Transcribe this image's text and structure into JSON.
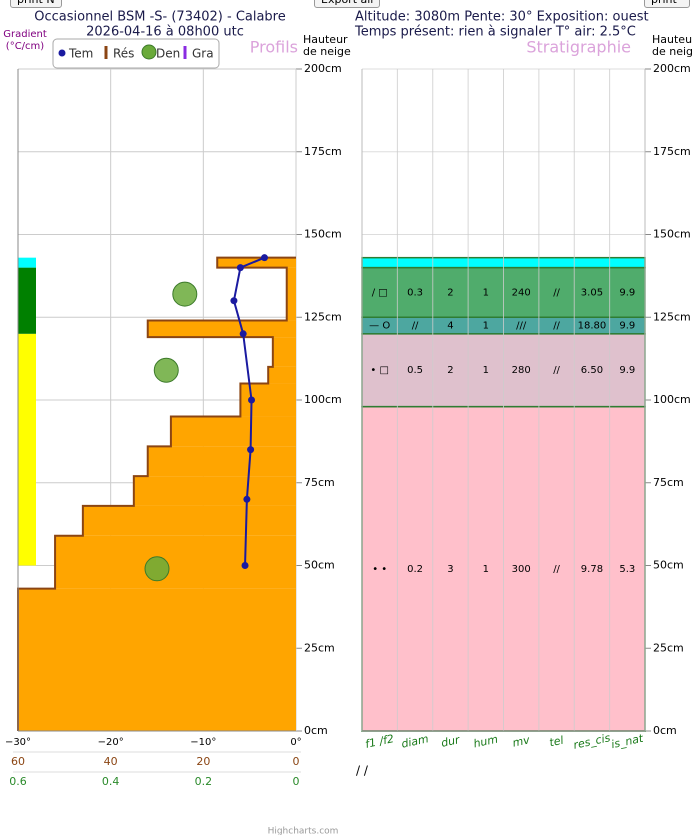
{
  "buttons": [
    "print N",
    "Export all",
    "print C"
  ],
  "header": {
    "title": "Occasionnel BSM -S- (73402) - Calabre",
    "date": "2026-04-16 à 08h00 utc",
    "line1": "Altitude: 3080m Pente: 30° Exposition: ouest",
    "line2": "Temps présent: rien à signaler T° air: 2.5°C"
  },
  "credit": "Highcharts.com",
  "chart_data": [
    {
      "type": "profile",
      "title": "Profils",
      "y_label": [
        "Hauteur",
        "de neige"
      ],
      "gradient_label": [
        "Gradient",
        "(°C/cm)"
      ],
      "ylim": [
        0,
        200
      ],
      "yticks": [
        {
          "value": 0,
          "label": "0cm"
        },
        {
          "value": 25,
          "label": "25cm"
        },
        {
          "value": 50,
          "label": "50cm"
        },
        {
          "value": 75,
          "label": "75cm"
        },
        {
          "value": 100,
          "label": "100cm"
        },
        {
          "value": 125,
          "label": "125cm"
        },
        {
          "value": 150,
          "label": "150cm"
        },
        {
          "value": 175,
          "label": "175cm"
        },
        {
          "value": 200,
          "label": "200cm"
        }
      ],
      "xlim": [
        -30,
        0
      ],
      "xticks": [
        {
          "value": -30,
          "label": "−30°"
        },
        {
          "value": -20,
          "label": "−20°"
        },
        {
          "value": -10,
          "label": "−10°"
        },
        {
          "value": 0,
          "label": "0°"
        }
      ],
      "res_xlim": [
        60,
        0
      ],
      "res_xticks": [
        60,
        40,
        20,
        0
      ],
      "den_xlim": [
        0.6,
        0
      ],
      "den_xticks": [
        0.6,
        0.4,
        0.2,
        0
      ],
      "grid": true,
      "series": [
        {
          "name": "Tem",
          "color": "#1a1aa0",
          "heights": [
            143,
            140,
            130,
            120,
            100,
            85,
            70,
            50
          ],
          "values": [
            -3.4,
            -6,
            -6.7,
            -5.7,
            -4.8,
            -4.9,
            -5.3,
            -5.5
          ]
        },
        {
          "name": "Rés",
          "color": "#8b4513",
          "fill": "#ffa500",
          "bottoms": [
            0,
            43,
            59,
            68,
            77,
            86,
            95,
            105,
            110,
            119,
            124,
            140
          ],
          "tops": [
            43,
            59,
            68,
            77,
            86,
            95,
            105,
            110,
            119,
            124,
            140,
            143
          ],
          "values": [
            60,
            52,
            46,
            35,
            32,
            27,
            12,
            6,
            5,
            32,
            2,
            17
          ]
        },
        {
          "name": "Den",
          "color": "#6aaa3a",
          "heights": [
            132,
            109,
            49
          ],
          "values": [
            0.24,
            0.28,
            0.3
          ]
        },
        {
          "name": "Gra",
          "color": "#8a2be2",
          "bottoms": [
            50,
            120,
            140
          ],
          "tops": [
            120,
            140,
            143
          ],
          "colors": [
            "#ffff00",
            "#008000",
            "#00ffff"
          ]
        }
      ]
    },
    {
      "type": "stratigraphy",
      "title": "Stratigraphie",
      "y_label": [
        "Hauteur",
        "de neige"
      ],
      "ylim": [
        0,
        200
      ],
      "yticks": [
        {
          "value": 0,
          "label": "0cm"
        },
        {
          "value": 25,
          "label": "25cm"
        },
        {
          "value": 50,
          "label": "50cm"
        },
        {
          "value": 75,
          "label": "75cm"
        },
        {
          "value": 100,
          "label": "100cm"
        },
        {
          "value": 125,
          "label": "125cm"
        },
        {
          "value": 150,
          "label": "150cm"
        },
        {
          "value": 175,
          "label": "175cm"
        },
        {
          "value": 200,
          "label": "200cm"
        }
      ],
      "columns": [
        "f1 /f2",
        "diam",
        "dur",
        "hum",
        "mv",
        "tel",
        "res_cis",
        "is_nat"
      ],
      "layers": [
        {
          "bottom": 0,
          "top": 98,
          "color": "#ffc0cb",
          "cells": [
            "• •",
            "0.2",
            "3",
            "1",
            "300",
            "//",
            "9.78",
            "5.3"
          ]
        },
        {
          "bottom": 98,
          "top": 120,
          "color": "#dfc1cd",
          "cells": [
            "• □",
            "0.5",
            "2",
            "1",
            "280",
            "//",
            "6.50",
            "9.9"
          ]
        },
        {
          "bottom": 120,
          "top": 125,
          "color": "#4da7a0",
          "cells": [
            "— O",
            "//",
            "4",
            "1",
            "///",
            "//",
            "18.80",
            "9.9"
          ]
        },
        {
          "bottom": 125,
          "top": 140,
          "color": "#50ac6c",
          "cells": [
            "/ □",
            "0.3",
            "2",
            "1",
            "240",
            "//",
            "3.05",
            "9.9"
          ]
        },
        {
          "bottom": 140,
          "top": 143,
          "color": "#00ffff"
        }
      ],
      "footnote": "/ /"
    }
  ]
}
